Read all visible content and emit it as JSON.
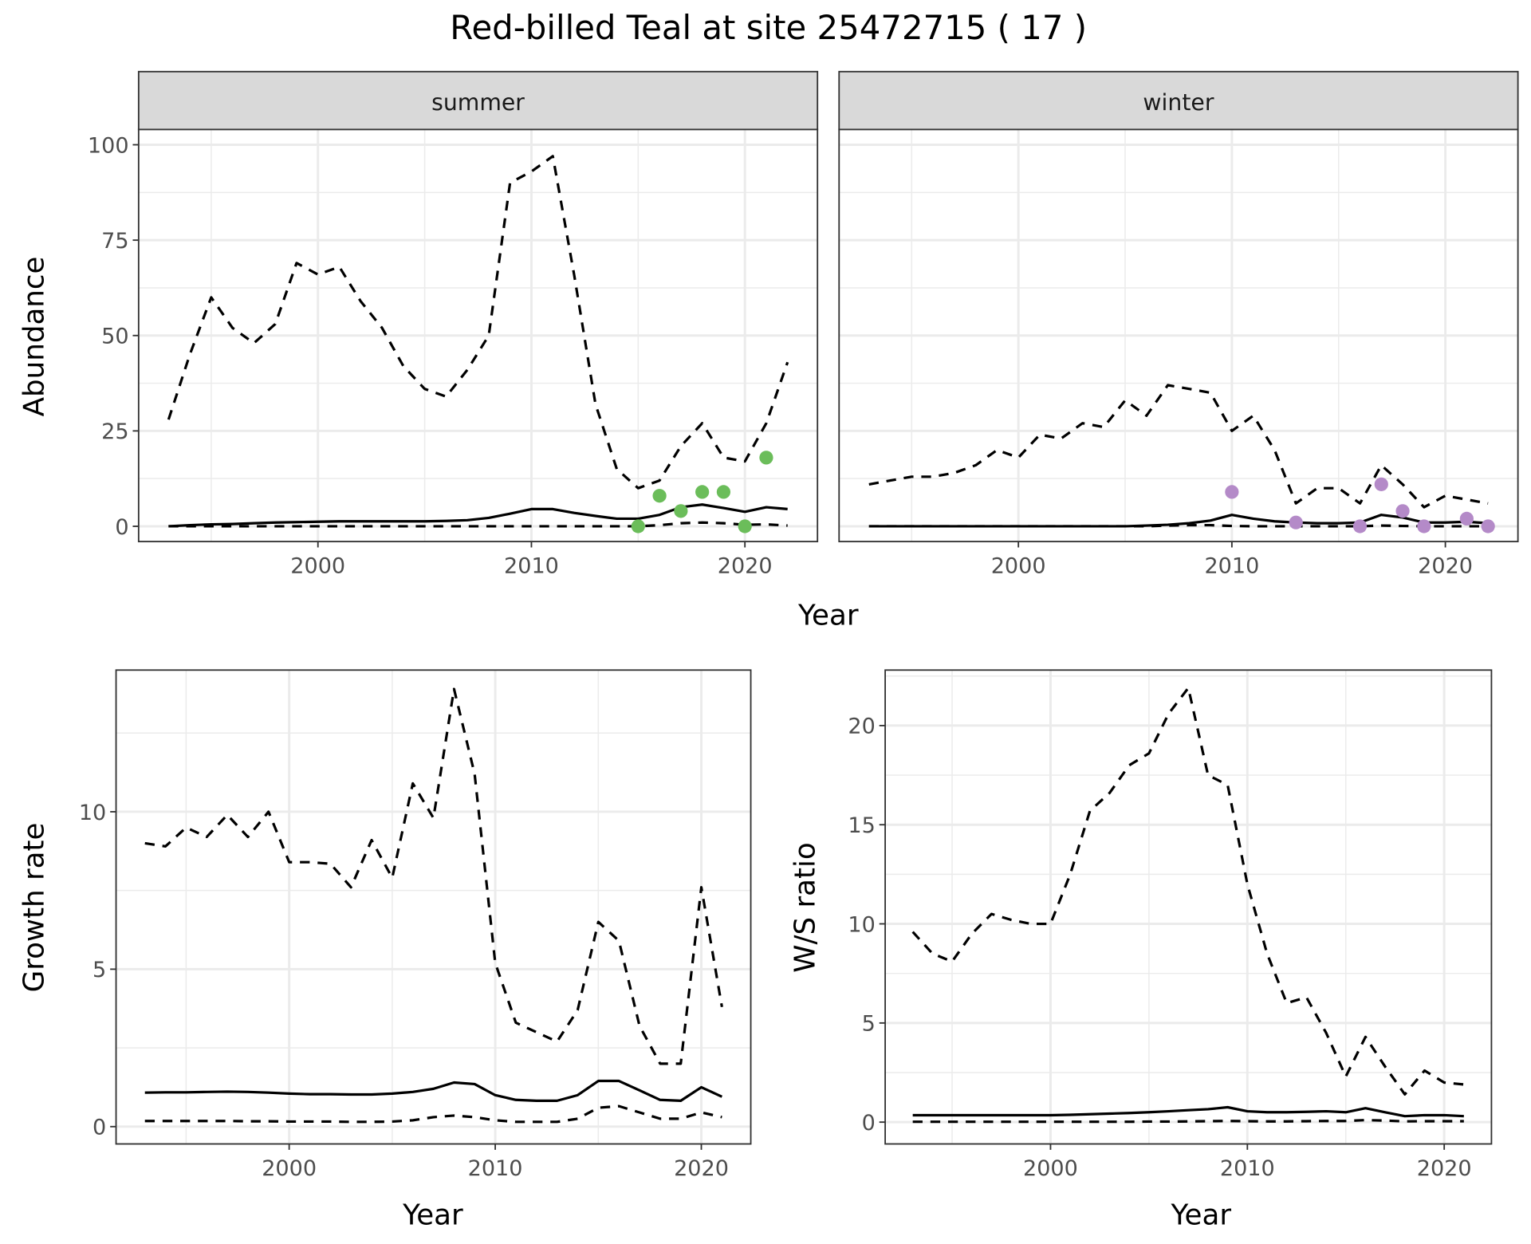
{
  "title": "Red-billed Teal at site 25472715 ( 17 )",
  "colors": {
    "summer_points": "#6bbd5a",
    "winter_points": "#b48ac8",
    "line": "#000000",
    "strip_bg": "#d9d9d9"
  },
  "chart_data": [
    {
      "type": "line",
      "facet": "summer",
      "xlabel": "Year",
      "ylabel": "Abundance",
      "xlim": [
        1991.6,
        2023.4
      ],
      "ylim": [
        -4,
        104
      ],
      "xticks": [
        "2000",
        "2010",
        "2020"
      ],
      "yticks": [
        "0",
        "25",
        "50",
        "75",
        "100"
      ],
      "x": [
        1993,
        1994,
        1995,
        1996,
        1997,
        1998,
        1999,
        2000,
        2001,
        2002,
        2003,
        2004,
        2005,
        2006,
        2007,
        2008,
        2009,
        2010,
        2011,
        2012,
        2013,
        2014,
        2015,
        2016,
        2017,
        2018,
        2019,
        2020,
        2021,
        2022
      ],
      "series": [
        {
          "name": "upper",
          "style": "dashed",
          "values": [
            28,
            45,
            60,
            52,
            48,
            53,
            69,
            66,
            68,
            59,
            52,
            42,
            36,
            34,
            41,
            50,
            90,
            93,
            97,
            66,
            32,
            15,
            10,
            12,
            21,
            27,
            18,
            17,
            27,
            43
          ]
        },
        {
          "name": "mean",
          "style": "solid",
          "values": [
            0,
            0.3,
            0.5,
            0.6,
            0.8,
            1,
            1.1,
            1.2,
            1.3,
            1.3,
            1.3,
            1.3,
            1.3,
            1.4,
            1.6,
            2.2,
            3.3,
            4.5,
            4.5,
            3.5,
            2.7,
            2,
            2,
            3,
            5,
            5.7,
            4.8,
            3.8,
            5,
            4.5
          ]
        },
        {
          "name": "lower",
          "style": "dashed",
          "values": [
            0,
            0,
            0,
            0,
            0,
            0,
            0,
            0,
            0,
            0,
            0,
            0,
            0,
            0,
            0,
            0,
            0,
            0,
            0,
            0,
            0,
            0,
            0,
            0.3,
            0.8,
            1,
            0.8,
            0.4,
            0.5,
            0.2
          ]
        }
      ],
      "points": {
        "x": [
          2015,
          2016,
          2017,
          2018,
          2019,
          2020,
          2021
        ],
        "y": [
          0,
          8,
          4,
          9,
          9,
          0,
          18
        ]
      }
    },
    {
      "type": "line",
      "facet": "winter",
      "xlabel": "Year",
      "ylabel": "Abundance",
      "xlim": [
        1991.6,
        2023.4
      ],
      "ylim": [
        -4,
        104
      ],
      "xticks": [
        "2000",
        "2010",
        "2020"
      ],
      "yticks": [],
      "x": [
        1993,
        1994,
        1995,
        1996,
        1997,
        1998,
        1999,
        2000,
        2001,
        2002,
        2003,
        2004,
        2005,
        2006,
        2007,
        2008,
        2009,
        2010,
        2011,
        2012,
        2013,
        2014,
        2015,
        2016,
        2017,
        2018,
        2019,
        2020,
        2021,
        2022
      ],
      "series": [
        {
          "name": "upper",
          "style": "dashed",
          "values": [
            11,
            12,
            13,
            13,
            14,
            16,
            20,
            18,
            24,
            23,
            27,
            26,
            33,
            29,
            37,
            36,
            35,
            25,
            29,
            20,
            6,
            10,
            10,
            6,
            16,
            11,
            5,
            8,
            7,
            6
          ]
        },
        {
          "name": "mean",
          "style": "solid",
          "values": [
            0,
            0,
            0,
            0,
            0,
            0,
            0,
            0,
            0,
            0,
            0,
            0,
            0,
            0.2,
            0.4,
            0.8,
            1.5,
            3,
            2,
            1.3,
            1,
            0.8,
            0.8,
            1,
            3,
            2.3,
            1,
            1,
            1.2,
            0.8
          ]
        },
        {
          "name": "lower",
          "style": "dashed",
          "values": [
            0,
            0,
            0,
            0,
            0,
            0,
            0,
            0,
            0,
            0,
            0,
            0,
            0,
            0,
            0.2,
            0.3,
            0.3,
            0.1,
            0,
            0,
            0,
            0,
            0,
            0,
            0.2,
            0.1,
            0,
            0,
            0,
            0
          ]
        }
      ],
      "points": {
        "x": [
          2010,
          2013,
          2016,
          2017,
          2018,
          2019,
          2021,
          2022
        ],
        "y": [
          9,
          1,
          0,
          11,
          4,
          0,
          2,
          0
        ]
      }
    },
    {
      "type": "line",
      "xlabel": "Year",
      "ylabel": "Growth rate",
      "xlim": [
        1991.6,
        2022.4
      ],
      "ylim": [
        -0.55,
        14.5
      ],
      "xticks": [
        "2000",
        "2010",
        "2020"
      ],
      "yticks": [
        "0",
        "5",
        "10"
      ],
      "x": [
        1993,
        1994,
        1995,
        1996,
        1997,
        1998,
        1999,
        2000,
        2001,
        2002,
        2003,
        2004,
        2005,
        2006,
        2007,
        2008,
        2009,
        2010,
        2011,
        2012,
        2013,
        2014,
        2015,
        2016,
        2017,
        2018,
        2019,
        2020,
        2021
      ],
      "series": [
        {
          "name": "upper",
          "style": "dashed",
          "values": [
            9.0,
            8.9,
            9.5,
            9.2,
            9.9,
            9.2,
            10.0,
            8.4,
            8.4,
            8.35,
            7.6,
            9.1,
            7.9,
            10.9,
            9.8,
            13.9,
            11.2,
            5.2,
            3.3,
            3.0,
            2.7,
            3.7,
            6.5,
            5.9,
            3.2,
            2.0,
            2.0,
            7.6,
            3.8
          ]
        },
        {
          "name": "mean",
          "style": "solid",
          "values": [
            1.08,
            1.09,
            1.09,
            1.1,
            1.11,
            1.1,
            1.08,
            1.05,
            1.03,
            1.03,
            1.02,
            1.02,
            1.05,
            1.1,
            1.2,
            1.4,
            1.35,
            1.0,
            0.85,
            0.82,
            0.82,
            1.0,
            1.45,
            1.45,
            1.15,
            0.85,
            0.82,
            1.25,
            0.95
          ]
        },
        {
          "name": "lower",
          "style": "dashed",
          "values": [
            0.18,
            0.18,
            0.18,
            0.18,
            0.18,
            0.17,
            0.17,
            0.16,
            0.16,
            0.16,
            0.15,
            0.15,
            0.16,
            0.2,
            0.3,
            0.35,
            0.3,
            0.2,
            0.15,
            0.15,
            0.15,
            0.25,
            0.6,
            0.65,
            0.45,
            0.25,
            0.25,
            0.45,
            0.3
          ]
        }
      ]
    },
    {
      "type": "line",
      "xlabel": "Year",
      "ylabel": "W/S ratio",
      "xlim": [
        1991.6,
        2022.4
      ],
      "ylim": [
        -1.1,
        22.8
      ],
      "xticks": [
        "2000",
        "2010",
        "2020"
      ],
      "yticks": [
        "0",
        "5",
        "10",
        "15",
        "20"
      ],
      "x": [
        1993,
        1994,
        1995,
        1996,
        1997,
        1998,
        1999,
        2000,
        2001,
        2002,
        2003,
        2004,
        2005,
        2006,
        2007,
        2008,
        2009,
        2010,
        2011,
        2012,
        2013,
        2014,
        2015,
        2016,
        2017,
        2018,
        2019,
        2020,
        2021
      ],
      "series": [
        {
          "name": "upper",
          "style": "dashed",
          "values": [
            9.6,
            8.5,
            8.1,
            9.5,
            10.5,
            10.2,
            10.0,
            10.0,
            12.5,
            15.7,
            16.6,
            18.0,
            18.6,
            20.6,
            21.9,
            17.5,
            17.0,
            12.0,
            8.5,
            6.0,
            6.3,
            4.5,
            2.3,
            4.3,
            2.8,
            1.4,
            2.6,
            2.0,
            1.9
          ]
        },
        {
          "name": "mean",
          "style": "solid",
          "values": [
            0.35,
            0.35,
            0.35,
            0.35,
            0.35,
            0.35,
            0.35,
            0.35,
            0.37,
            0.4,
            0.43,
            0.46,
            0.5,
            0.55,
            0.6,
            0.65,
            0.75,
            0.55,
            0.5,
            0.5,
            0.52,
            0.55,
            0.5,
            0.7,
            0.5,
            0.3,
            0.35,
            0.35,
            0.3
          ]
        },
        {
          "name": "lower",
          "style": "dashed",
          "values": [
            0.02,
            0.02,
            0.02,
            0.02,
            0.02,
            0.02,
            0.02,
            0.02,
            0.02,
            0.02,
            0.02,
            0.02,
            0.03,
            0.03,
            0.04,
            0.05,
            0.06,
            0.05,
            0.04,
            0.04,
            0.05,
            0.06,
            0.06,
            0.1,
            0.08,
            0.04,
            0.05,
            0.05,
            0.05
          ]
        }
      ]
    }
  ]
}
